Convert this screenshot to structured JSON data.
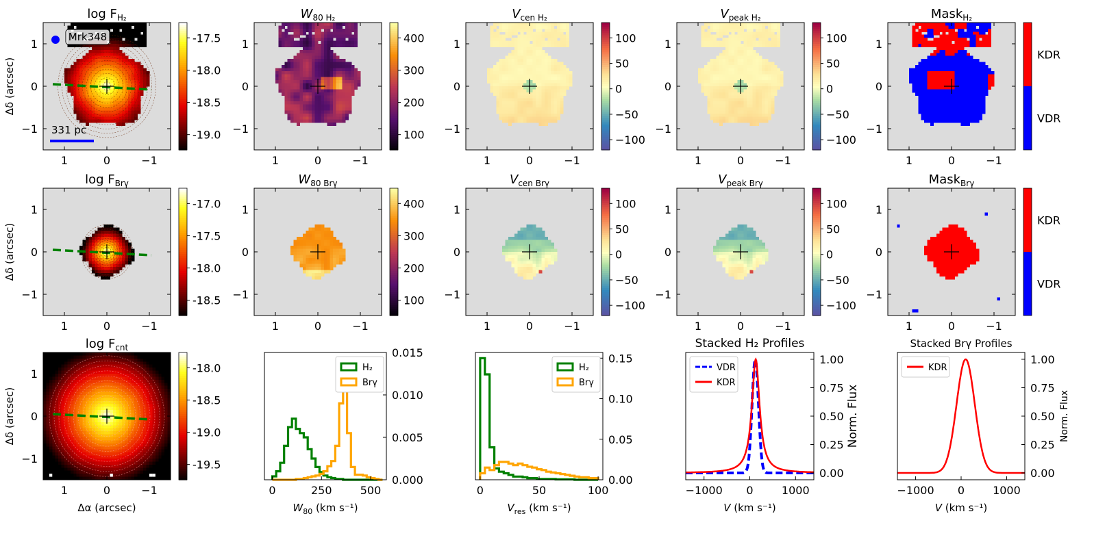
{
  "figure": {
    "target": "Mrk348",
    "scale_bar": "331 pc"
  },
  "colors": {
    "nodata": "#dcdcdc",
    "green": "#008000",
    "orange": "#ffa500",
    "red": "#ff0000",
    "blue": "#0000ff"
  },
  "chart_data": [
    {
      "id": "h2_flux",
      "type": "heatmap",
      "title": "log F_H2",
      "title_main": "log F",
      "title_sub": "H₂",
      "italic": false,
      "cmap": "hot",
      "cb_ticks": [
        "-17.5",
        "-18.0",
        "-18.5",
        "-19.0"
      ],
      "ylabel": "Δδ (arcsec)",
      "xlim": [
        1.5,
        -1.5
      ],
      "ylim": [
        -1.5,
        1.5
      ],
      "xticks": [
        "1",
        "0",
        "−1"
      ],
      "yticks": [
        "1",
        "0",
        "−1"
      ]
    },
    {
      "id": "h2_w80",
      "type": "heatmap",
      "title": "W80 H2",
      "title_main": "W",
      "title_sub": "80 H₂",
      "italic": true,
      "cmap": "inferno",
      "cb_ticks": [
        "400",
        "300",
        "200",
        "100"
      ],
      "xticks": [
        "1",
        "0",
        "−1"
      ],
      "yticks": [
        "1",
        "0",
        "−1"
      ]
    },
    {
      "id": "h2_vcen",
      "type": "heatmap",
      "title": "Vcen H2",
      "title_main": "V",
      "title_sub": "cen H₂",
      "italic": true,
      "cmap": "spectral",
      "cb_ticks": [
        "100",
        "50",
        "0",
        "−50",
        "−100"
      ],
      "xticks": [
        "1",
        "0",
        "−1"
      ],
      "yticks": [
        "1",
        "0",
        "−1"
      ]
    },
    {
      "id": "h2_vpeak",
      "type": "heatmap",
      "title": "Vpeak H2",
      "title_main": "V",
      "title_sub": "peak H₂",
      "italic": true,
      "cmap": "spectral",
      "cb_ticks": [
        "100",
        "50",
        "0",
        "−50",
        "−100"
      ],
      "xticks": [
        "1",
        "0",
        "−1"
      ],
      "yticks": [
        "1",
        "0",
        "−1"
      ]
    },
    {
      "id": "h2_mask",
      "type": "heatmap",
      "title": "Mask_H2",
      "title_main": "Mask",
      "title_sub": "H₂",
      "italic": false,
      "cmap": "mask",
      "cb_ticks": [
        "KDR",
        "VDR"
      ],
      "xticks": [
        "1",
        "0",
        "−1"
      ],
      "yticks": [
        "1",
        "0",
        "−1"
      ]
    },
    {
      "id": "brg_flux",
      "type": "heatmap",
      "title": "log F_Brγ",
      "title_main": "log F",
      "title_sub": "Brγ",
      "italic": false,
      "cmap": "hot",
      "cb_ticks": [
        "-17.0",
        "-17.5",
        "-18.0",
        "-18.5"
      ],
      "ylabel": "Δδ (arcsec)",
      "xticks": [
        "1",
        "0",
        "−1"
      ],
      "yticks": [
        "1",
        "0",
        "−1"
      ]
    },
    {
      "id": "brg_w80",
      "type": "heatmap",
      "title": "W80 Brγ",
      "title_main": "W",
      "title_sub": "80 Brγ",
      "italic": true,
      "cmap": "inferno",
      "cb_ticks": [
        "400",
        "300",
        "200",
        "100"
      ],
      "xticks": [
        "1",
        "0",
        "−1"
      ],
      "yticks": [
        "1",
        "0",
        "−1"
      ]
    },
    {
      "id": "brg_vcen",
      "type": "heatmap",
      "title": "Vcen Brγ",
      "title_main": "V",
      "title_sub": "cen Brγ",
      "italic": true,
      "cmap": "spectral",
      "cb_ticks": [
        "100",
        "50",
        "0",
        "−50",
        "−100"
      ],
      "xticks": [
        "1",
        "0",
        "−1"
      ],
      "yticks": [
        "1",
        "0",
        "−1"
      ]
    },
    {
      "id": "brg_vpeak",
      "type": "heatmap",
      "title": "Vpeak Brγ",
      "title_main": "V",
      "title_sub": "peak Brγ",
      "italic": true,
      "cmap": "spectral",
      "cb_ticks": [
        "100",
        "50",
        "0",
        "−50",
        "−100"
      ],
      "xticks": [
        "1",
        "0",
        "−1"
      ],
      "yticks": [
        "1",
        "0",
        "−1"
      ]
    },
    {
      "id": "brg_mask",
      "type": "heatmap",
      "title": "Mask_Brγ",
      "title_main": "Mask",
      "title_sub": "Brγ",
      "italic": false,
      "cmap": "mask",
      "cb_ticks": [
        "KDR",
        "VDR"
      ],
      "xticks": [
        "1",
        "0",
        "−1"
      ],
      "yticks": [
        "1",
        "0",
        "−1"
      ]
    },
    {
      "id": "cnt_flux",
      "type": "heatmap",
      "title": "log F_cnt",
      "title_main": "log F",
      "title_sub": "cnt",
      "italic": false,
      "cmap": "hot",
      "cb_ticks": [
        "-18.0",
        "-18.5",
        "-19.0",
        "-19.5"
      ],
      "ylabel": "Δδ (arcsec)",
      "xlabel": "Δα (arcsec)",
      "xticks": [
        "1",
        "0",
        "−1"
      ],
      "yticks": [
        "1",
        "0",
        "−1"
      ]
    },
    {
      "id": "w80_hist",
      "type": "bar",
      "title": "",
      "xlabel_main": "W",
      "xlabel_sub": "80",
      "xlabel_rest": " (km s⁻¹)",
      "xticks": [
        "0",
        "250",
        "500"
      ],
      "xlim": [
        -40,
        580
      ],
      "yticks": [
        "0.015",
        "0.010",
        "0.005",
        "0.000"
      ],
      "ylim": [
        0,
        0.015
      ],
      "legend": [
        "H₂",
        "Brγ"
      ],
      "series": [
        {
          "name": "H₂",
          "bin_width": 20,
          "bin_start": 0,
          "values": [
            0.0004,
            0.001,
            0.002,
            0.004,
            0.0062,
            0.0072,
            0.006,
            0.0055,
            0.005,
            0.0036,
            0.0025,
            0.0015,
            0.0009,
            0.0005,
            0.0003,
            0.0002,
            0.0001,
            0.0001,
            0.0,
            0.0,
            0.0,
            0.0,
            0.0,
            0.0,
            0.0,
            0.0,
            0.0,
            0.0
          ]
        },
        {
          "name": "Brγ",
          "bin_width": 20,
          "bin_start": 0,
          "values": [
            0.0,
            0.0,
            0.0,
            0.0,
            0.0,
            0.0,
            0.0001,
            0.0001,
            0.0002,
            0.0003,
            0.0004,
            0.0005,
            0.0007,
            0.001,
            0.0016,
            0.0022,
            0.004,
            0.009,
            0.013,
            0.0055,
            0.0015,
            0.0006,
            0.0006,
            0.0005,
            0.0003,
            0.0002,
            0.0001,
            0.0
          ]
        }
      ]
    },
    {
      "id": "vres_hist",
      "type": "bar",
      "title": "",
      "xlabel_main": "V",
      "xlabel_sub": "res",
      "xlabel_rest": " (km s⁻¹)",
      "xticks": [
        "0",
        "50",
        "100"
      ],
      "xlim": [
        -4,
        104
      ],
      "yticks": [
        "0.15",
        "0.10",
        "0.05",
        "0.00"
      ],
      "ylim": [
        0,
        0.157
      ],
      "legend": [
        "H₂",
        "Brγ"
      ],
      "series": [
        {
          "name": "H₂",
          "bin_width": 4,
          "bin_start": 0,
          "values": [
            0.15,
            0.13,
            0.04,
            0.014,
            0.01,
            0.008,
            0.006,
            0.004,
            0.004,
            0.003,
            0.002,
            0.002,
            0.001,
            0.001,
            0.001,
            0.001,
            0.0005,
            0.0005,
            0.0005,
            0.0005,
            0.0,
            0.0,
            0.0,
            0.0,
            0.0
          ]
        },
        {
          "name": "Brγ",
          "bin_width": 4,
          "bin_start": 0,
          "values": [
            0.008,
            0.015,
            0.012,
            0.018,
            0.022,
            0.022,
            0.02,
            0.018,
            0.02,
            0.018,
            0.016,
            0.015,
            0.013,
            0.012,
            0.01,
            0.009,
            0.008,
            0.007,
            0.006,
            0.005,
            0.004,
            0.003,
            0.003,
            0.002,
            0.002
          ]
        }
      ]
    },
    {
      "id": "h2_profiles",
      "type": "line",
      "title": "Stacked H₂ Profiles",
      "xlabel_main": "V",
      "xlabel_rest": " (km s⁻¹)",
      "ylabel": "Norm. Flux",
      "xticks": [
        "−1000",
        "0",
        "1000"
      ],
      "xlim": [
        -1400,
        1400
      ],
      "yticks": [
        "1.00",
        "0.75",
        "0.50",
        "0.25",
        "0.00"
      ],
      "ylim": [
        -0.06,
        1.06
      ],
      "legend": [
        "VDR",
        "KDR"
      ],
      "series": [
        {
          "name": "VDR",
          "center": 120,
          "sigma": 70,
          "style": "dashed",
          "color": "#0000ff"
        },
        {
          "name": "KDR",
          "center": 130,
          "sigma": 130,
          "lorentz": true,
          "color": "#ff0000"
        }
      ]
    },
    {
      "id": "brg_profiles",
      "type": "line",
      "title": "Stacked Brγ Profiles",
      "xlabel_main": "V",
      "xlabel_rest": " (km s⁻¹)",
      "ylabel": "Norm. Flux",
      "xticks": [
        "−1000",
        "0",
        "1000"
      ],
      "xlim": [
        -1400,
        1400
      ],
      "yticks": [
        "1.00",
        "0.75",
        "0.50",
        "0.25",
        "0.00"
      ],
      "ylim": [
        -0.06,
        1.06
      ],
      "legend": [
        "KDR"
      ],
      "series": [
        {
          "name": "KDR",
          "center": 100,
          "sigma": 200,
          "color": "#ff0000"
        }
      ]
    }
  ]
}
